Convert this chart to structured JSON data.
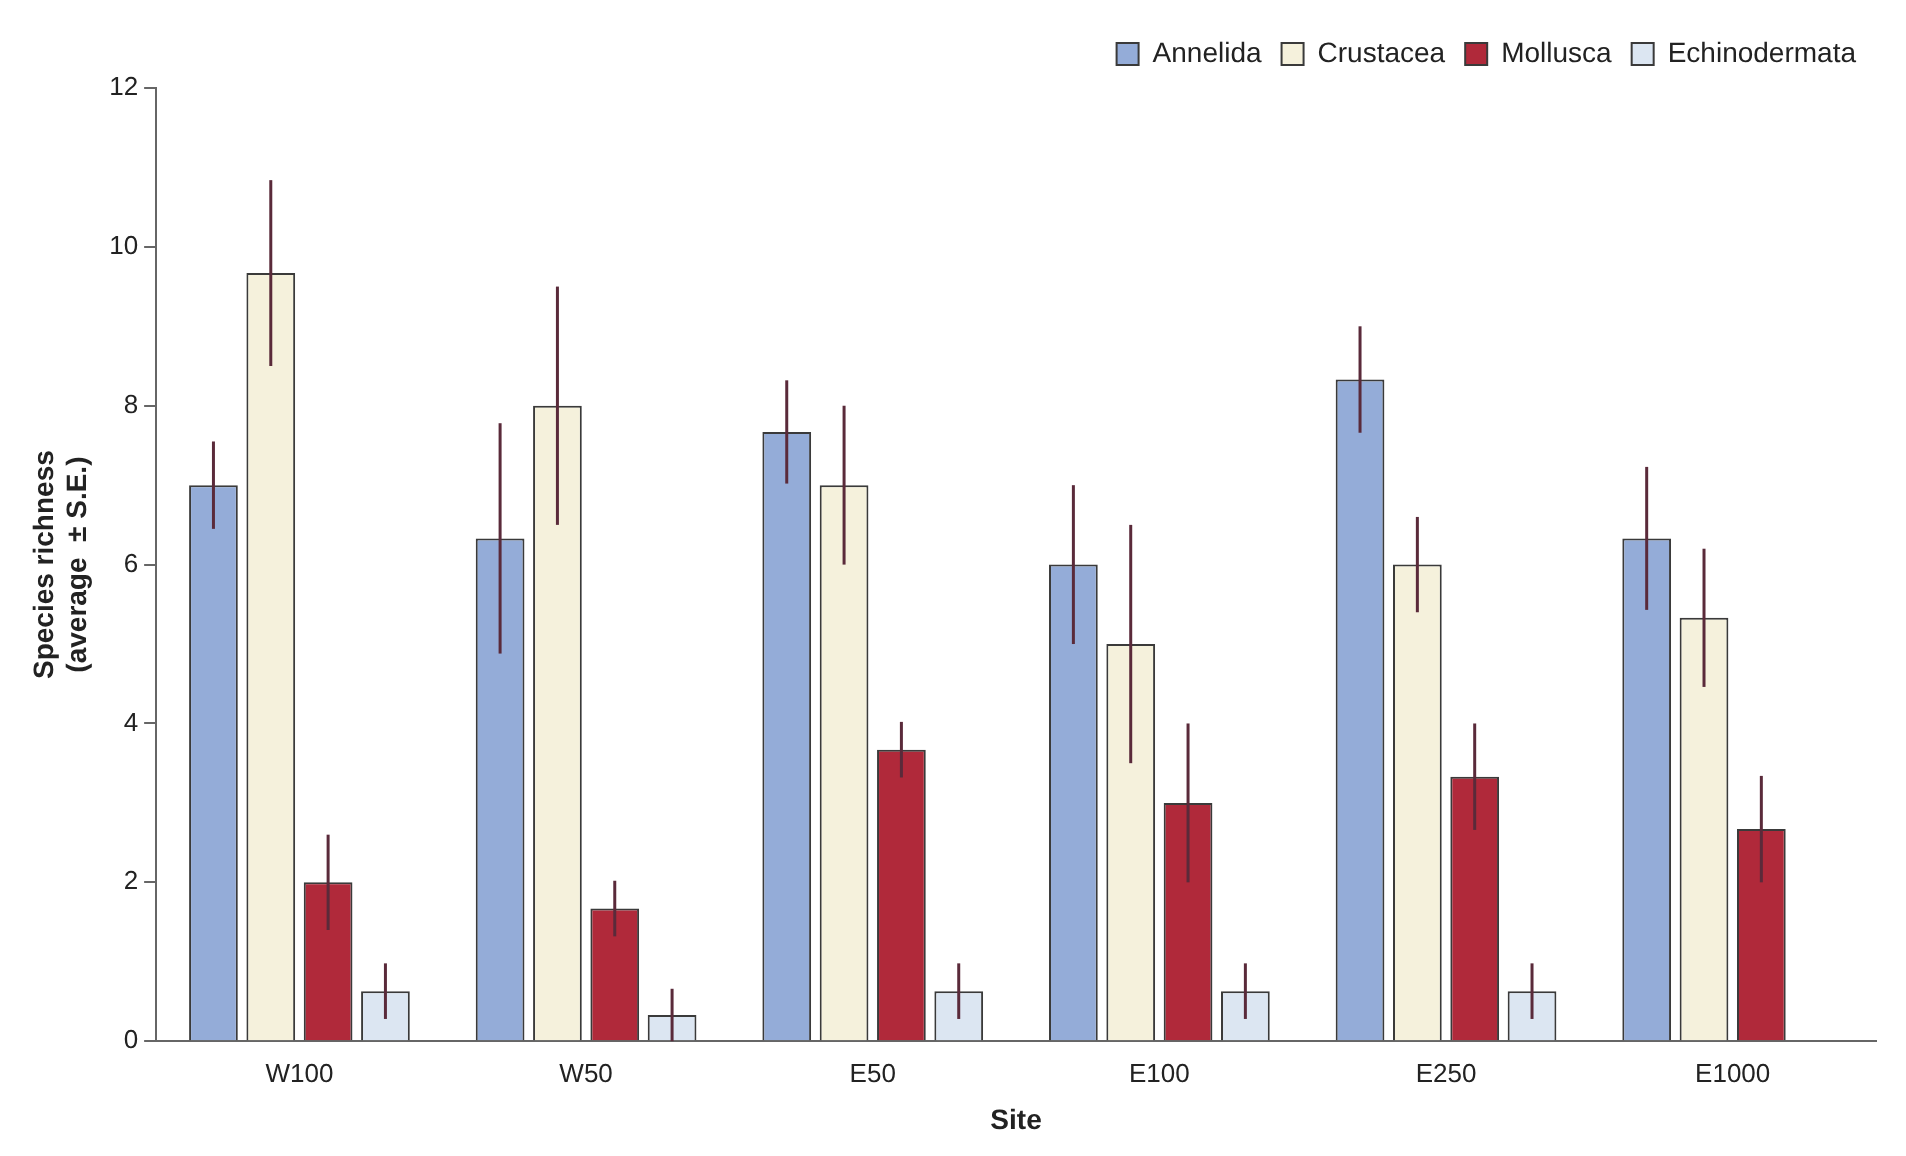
{
  "chart_data": {
    "type": "bar",
    "xlabel": "Site",
    "ylabel": "Species richness\n(average  ± S.E.)",
    "categories": [
      "W100",
      "W50",
      "E50",
      "E100",
      "E250",
      "E1000"
    ],
    "series": [
      {
        "name": "Annelida",
        "color": "#94acd8",
        "values": [
          7.0,
          6.33,
          7.67,
          6.0,
          8.33,
          6.33
        ],
        "errors": [
          0.55,
          1.45,
          0.65,
          1.0,
          0.67,
          0.9
        ]
      },
      {
        "name": "Crustacea",
        "color": "#f5f1dc",
        "values": [
          9.67,
          8.0,
          7.0,
          5.0,
          6.0,
          5.33
        ],
        "errors": [
          1.17,
          1.5,
          1.0,
          1.5,
          0.6,
          0.87
        ]
      },
      {
        "name": "Mollusca",
        "color": "#b0293a",
        "values": [
          2.0,
          1.67,
          3.67,
          3.0,
          3.33,
          2.67
        ],
        "errors": [
          0.6,
          0.35,
          0.35,
          1.0,
          0.67,
          0.67
        ]
      },
      {
        "name": "Echinodermata",
        "color": "#dce6f2",
        "values": [
          0.63,
          0.33,
          0.63,
          0.63,
          0.63,
          0
        ],
        "errors": [
          0.35,
          0.33,
          0.35,
          0.35,
          0.35,
          null
        ]
      }
    ],
    "ylim": [
      0,
      12
    ],
    "yticks": [
      0,
      2,
      4,
      6,
      8,
      10,
      12
    ],
    "grid": false,
    "legend": "top right"
  }
}
